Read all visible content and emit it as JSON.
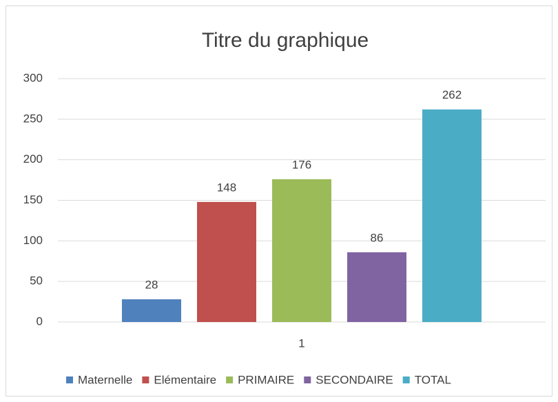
{
  "chart_data": {
    "type": "bar",
    "title": "Titre du graphique",
    "categories": [
      "1"
    ],
    "series": [
      {
        "name": "Maternelle",
        "color": "#4f81bd",
        "values": [
          28
        ]
      },
      {
        "name": "Elémentaire",
        "color": "#c0504d",
        "values": [
          148
        ]
      },
      {
        "name": "PRIMAIRE",
        "color": "#9bbb59",
        "values": [
          176
        ]
      },
      {
        "name": "SECONDAIRE",
        "color": "#8064a2",
        "values": [
          86
        ]
      },
      {
        "name": "TOTAL",
        "color": "#4bacc6",
        "values": [
          262
        ]
      }
    ],
    "ylim": [
      0,
      300
    ],
    "yticks": [
      0,
      50,
      100,
      150,
      200,
      250,
      300
    ],
    "grid": true,
    "legend": "bottom"
  }
}
